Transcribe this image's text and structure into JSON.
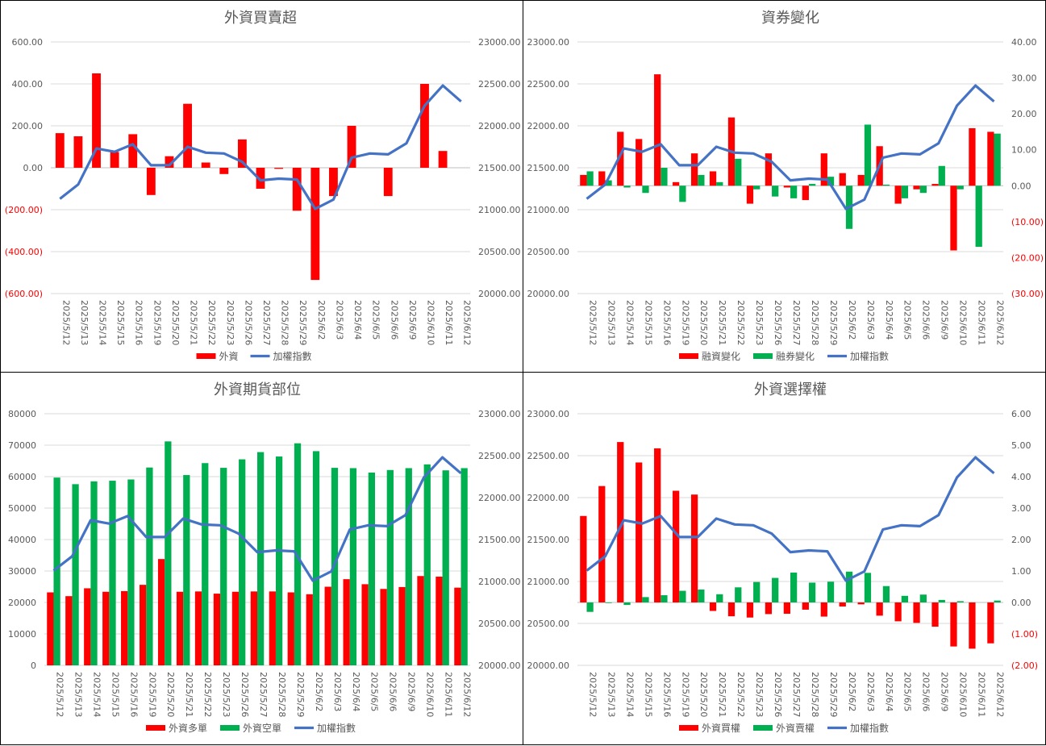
{
  "dates": [
    "2025/5/12",
    "2025/5/13",
    "2025/5/14",
    "2025/5/15",
    "2025/5/16",
    "2025/5/19",
    "2025/5/20",
    "2025/5/21",
    "2025/5/22",
    "2025/5/23",
    "2025/5/26",
    "2025/5/27",
    "2025/5/28",
    "2025/5/29",
    "2025/6/2",
    "2025/6/3",
    "2025/6/4",
    "2025/6/5",
    "2025/6/6",
    "2025/6/9",
    "2025/6/10",
    "2025/6/11",
    "2025/6/12"
  ],
  "index_name": "加權指數",
  "index_values": [
    21130,
    21300,
    21730,
    21690,
    21780,
    21530,
    21530,
    21750,
    21680,
    21670,
    21570,
    21350,
    21370,
    21360,
    21010,
    21120,
    21620,
    21670,
    21660,
    21790,
    22240,
    22480,
    22290
  ],
  "colors": {
    "red": "#ff0000",
    "green": "#00b050",
    "blue": "#4472c4",
    "grid": "#d9d9d9",
    "text": "#595959"
  },
  "chart_data": [
    {
      "type": "bar",
      "title": "外資買賣超",
      "series": [
        {
          "name": "外資",
          "color": "#ff0000",
          "values": [
            165,
            150,
            450,
            75,
            160,
            -130,
            55,
            305,
            25,
            -30,
            135,
            -100,
            -5,
            -205,
            -535,
            -135,
            200,
            0,
            -135,
            0,
            400,
            80,
            0
          ]
        }
      ],
      "left_axis": {
        "min": -600,
        "max": 600,
        "step": 200,
        "labels": [
          "(600.00)",
          "(400.00)",
          "(200.00)",
          "0.00",
          "200.00",
          "400.00",
          "600.00"
        ]
      },
      "right_axis": {
        "min": 20000,
        "max": 23000,
        "step": 500,
        "labels": [
          "20000.00",
          "20500.00",
          "21000.00",
          "21500.00",
          "22000.00",
          "22500.00",
          "23000.00"
        ]
      },
      "line_on": "right"
    },
    {
      "type": "bar",
      "title": "資券變化",
      "series": [
        {
          "name": "融資變化",
          "color": "#ff0000",
          "values": [
            3,
            4,
            15,
            13,
            31,
            1,
            9,
            4,
            19,
            -5,
            9,
            -0.5,
            -4,
            9,
            3.5,
            3,
            11,
            -5,
            -1,
            0.5,
            -18,
            16,
            15
          ]
        },
        {
          "name": "融券變化",
          "color": "#00b050",
          "values": [
            4,
            1.5,
            -0.5,
            -2,
            5,
            -4.5,
            3,
            1,
            7.5,
            -1,
            -3,
            -3.5,
            0.5,
            2.5,
            -12,
            17,
            0.3,
            -3.5,
            -2,
            5.5,
            -1,
            -17,
            14.5
          ]
        }
      ],
      "left_axis": {
        "min": 20000,
        "max": 23000,
        "step": 500,
        "labels": [
          "20000.00",
          "20500.00",
          "21000.00",
          "21500.00",
          "22000.00",
          "22500.00",
          "23000.00"
        ]
      },
      "right_axis": {
        "min": -30,
        "max": 40,
        "step": 10,
        "labels": [
          "(30.00)",
          "(20.00)",
          "(10.00)",
          "0.00",
          "10.00",
          "20.00",
          "30.00",
          "40.00"
        ]
      },
      "bars_on": "right",
      "line_on": "left"
    },
    {
      "type": "bar",
      "title": "外資期貨部位",
      "series": [
        {
          "name": "外資多單",
          "color": "#ff0000",
          "values": [
            23200,
            22000,
            24500,
            23400,
            23600,
            25600,
            33800,
            23400,
            23500,
            22800,
            23400,
            23500,
            23500,
            23200,
            22600,
            25000,
            27400,
            25800,
            24300,
            24900,
            28400,
            28200,
            24700
          ]
        },
        {
          "name": "外資空單",
          "color": "#00b050",
          "values": [
            59700,
            57600,
            58500,
            58700,
            59100,
            62900,
            71200,
            60500,
            64300,
            62800,
            65500,
            67800,
            66400,
            70600,
            68100,
            62800,
            62700,
            61300,
            62100,
            62700,
            63900,
            62000,
            62700
          ]
        }
      ],
      "left_axis": {
        "min": 0,
        "max": 80000,
        "step": 10000,
        "labels": [
          "0",
          "10000",
          "20000",
          "30000",
          "40000",
          "50000",
          "60000",
          "70000",
          "80000"
        ]
      },
      "right_axis": {
        "min": 20000,
        "max": 23000,
        "step": 500,
        "labels": [
          "20000.00",
          "20500.00",
          "21000.00",
          "21500.00",
          "22000.00",
          "22500.00",
          "23000.00"
        ]
      },
      "line_on": "right"
    },
    {
      "type": "bar",
      "title": "外資選擇權",
      "series": [
        {
          "name": "外資買權",
          "color": "#ff0000",
          "values": [
            2.75,
            3.7,
            5.1,
            4.45,
            4.9,
            3.55,
            3.43,
            -0.27,
            -0.44,
            -0.48,
            -0.37,
            -0.36,
            -0.23,
            -0.45,
            -0.13,
            -0.06,
            -0.42,
            -0.6,
            -0.65,
            -0.77,
            -1.4,
            -1.47,
            -1.3
          ]
        },
        {
          "name": "外資賣權",
          "color": "#00b050",
          "values": [
            -0.3,
            -0.02,
            -0.08,
            0.17,
            0.23,
            0.37,
            0.41,
            0.26,
            0.48,
            0.65,
            0.78,
            0.95,
            0.63,
            0.66,
            0.98,
            0.94,
            0.52,
            0.21,
            0.25,
            0.08,
            0.04,
            0,
            0.06
          ]
        }
      ],
      "left_axis": {
        "min": 20000,
        "max": 23000,
        "step": 500,
        "labels": [
          "20000.00",
          "20500.00",
          "21000.00",
          "21500.00",
          "22000.00",
          "22500.00",
          "23000.00"
        ]
      },
      "right_axis": {
        "min": -2,
        "max": 6,
        "step": 1,
        "labels": [
          "(2.00)",
          "(1.00)",
          "0.00",
          "1.00",
          "2.00",
          "3.00",
          "4.00",
          "5.00",
          "6.00"
        ]
      },
      "bars_on": "right",
      "line_on": "left"
    }
  ]
}
